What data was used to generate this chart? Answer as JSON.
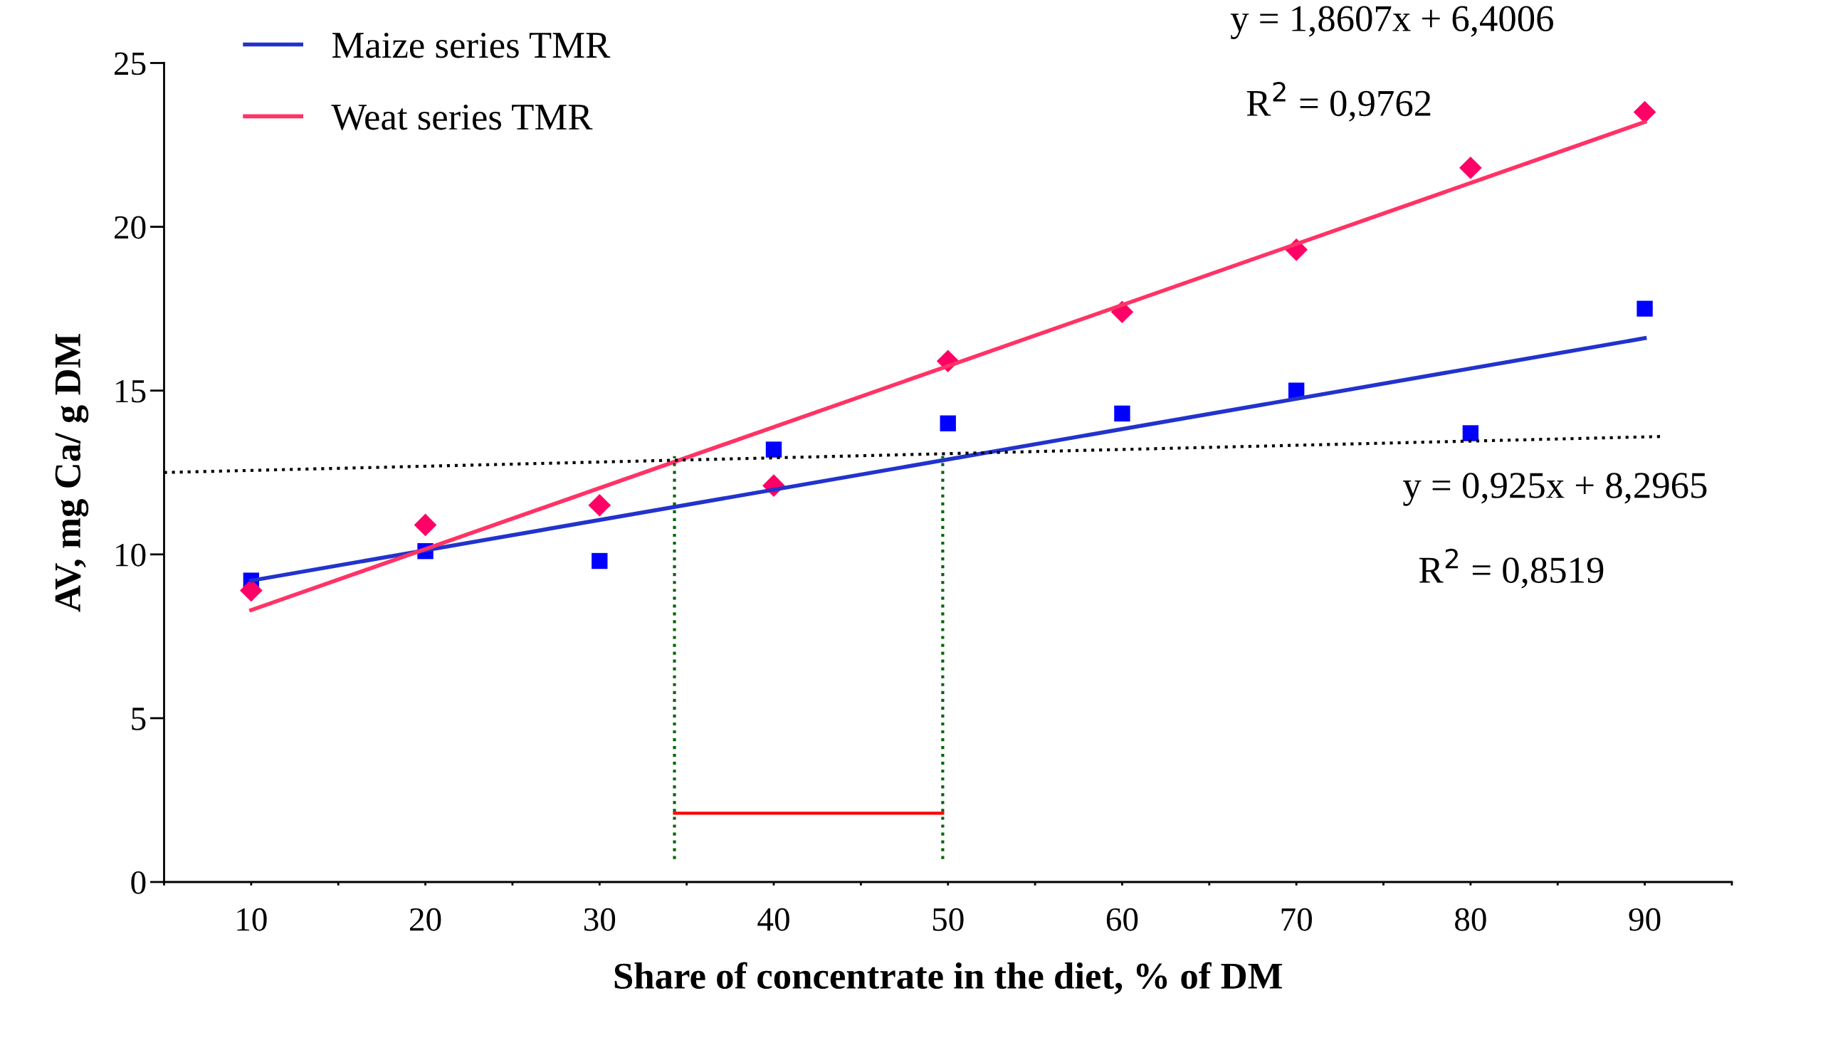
{
  "chart_data": {
    "type": "scatter",
    "xlabel": "Share of concentrate in the diet, % of DM",
    "ylabel": "AV, mg Ca/ g DM",
    "x": [
      10,
      20,
      30,
      40,
      50,
      60,
      70,
      80,
      90
    ],
    "series": [
      {
        "color": "#0000ff",
        "marker": "square",
        "values": [
          9.2,
          10.1,
          9.8,
          13.2,
          14.0,
          14.3,
          15.0,
          13.7,
          17.5
        ]
      },
      {
        "color": "#ff0066",
        "marker": "diamond",
        "values": [
          8.9,
          10.9,
          11.5,
          12.1,
          15.9,
          17.4,
          19.3,
          21.8,
          23.5
        ]
      },
      {
        "type": "line",
        "name": "Maize series TMR",
        "color": "#2233cc",
        "x": [
          10,
          90
        ],
        "values": [
          9.2,
          16.6
        ]
      },
      {
        "type": "line",
        "name": "Weat series TMR",
        "color": "#ff3366",
        "x": [
          10,
          90
        ],
        "values": [
          8.3,
          23.2
        ]
      },
      {
        "type": "line",
        "color": "#000000",
        "line_style": "dotted",
        "x": [
          5,
          91
        ],
        "values": [
          12.5,
          13.6
        ]
      },
      {
        "type": "line",
        "color": "#006600",
        "line_style": "dotted",
        "x": [
          34.3,
          34.3
        ],
        "values": [
          0.7,
          13.0
        ]
      },
      {
        "type": "line",
        "color": "#006600",
        "line_style": "dotted",
        "x": [
          49.7,
          49.7
        ],
        "values": [
          0.7,
          13.0
        ]
      },
      {
        "type": "line",
        "color": "#ff0000",
        "x": [
          34.3,
          49.7
        ],
        "values": [
          2.1,
          2.1
        ]
      }
    ],
    "annotations": [
      "y = 1,8607x + 6,4006",
      "R$^{2}$ = 0,9762",
      "y = 0,925x + 8,2965",
      "R$^{2}$ = 0,8519"
    ],
    "xlim": [
      5,
      95
    ],
    "xticks": [
      {
        "value": 5,
        "label": null
      },
      {
        "value": 10,
        "label": "10"
      },
      {
        "value": 15,
        "label": null
      },
      {
        "value": 20,
        "label": "20"
      },
      {
        "value": 25,
        "label": null
      },
      {
        "value": 30,
        "label": "30"
      },
      {
        "value": 35,
        "label": null
      },
      {
        "value": 40,
        "label": "40"
      },
      {
        "value": 45,
        "label": null
      },
      {
        "value": 50,
        "label": "50"
      },
      {
        "value": 55,
        "label": null
      },
      {
        "value": 60,
        "label": "60"
      },
      {
        "value": 65,
        "label": null
      },
      {
        "value": 70,
        "label": "70"
      },
      {
        "value": 75,
        "label": null
      },
      {
        "value": 80,
        "label": "80"
      },
      {
        "value": 85,
        "label": null
      },
      {
        "value": 90,
        "label": "90"
      },
      {
        "value": 95,
        "label": null
      }
    ],
    "ylim": [
      0,
      25
    ],
    "yticks": [
      0,
      5,
      10,
      15,
      20,
      25
    ],
    "grid": false,
    "legend": "top left"
  }
}
